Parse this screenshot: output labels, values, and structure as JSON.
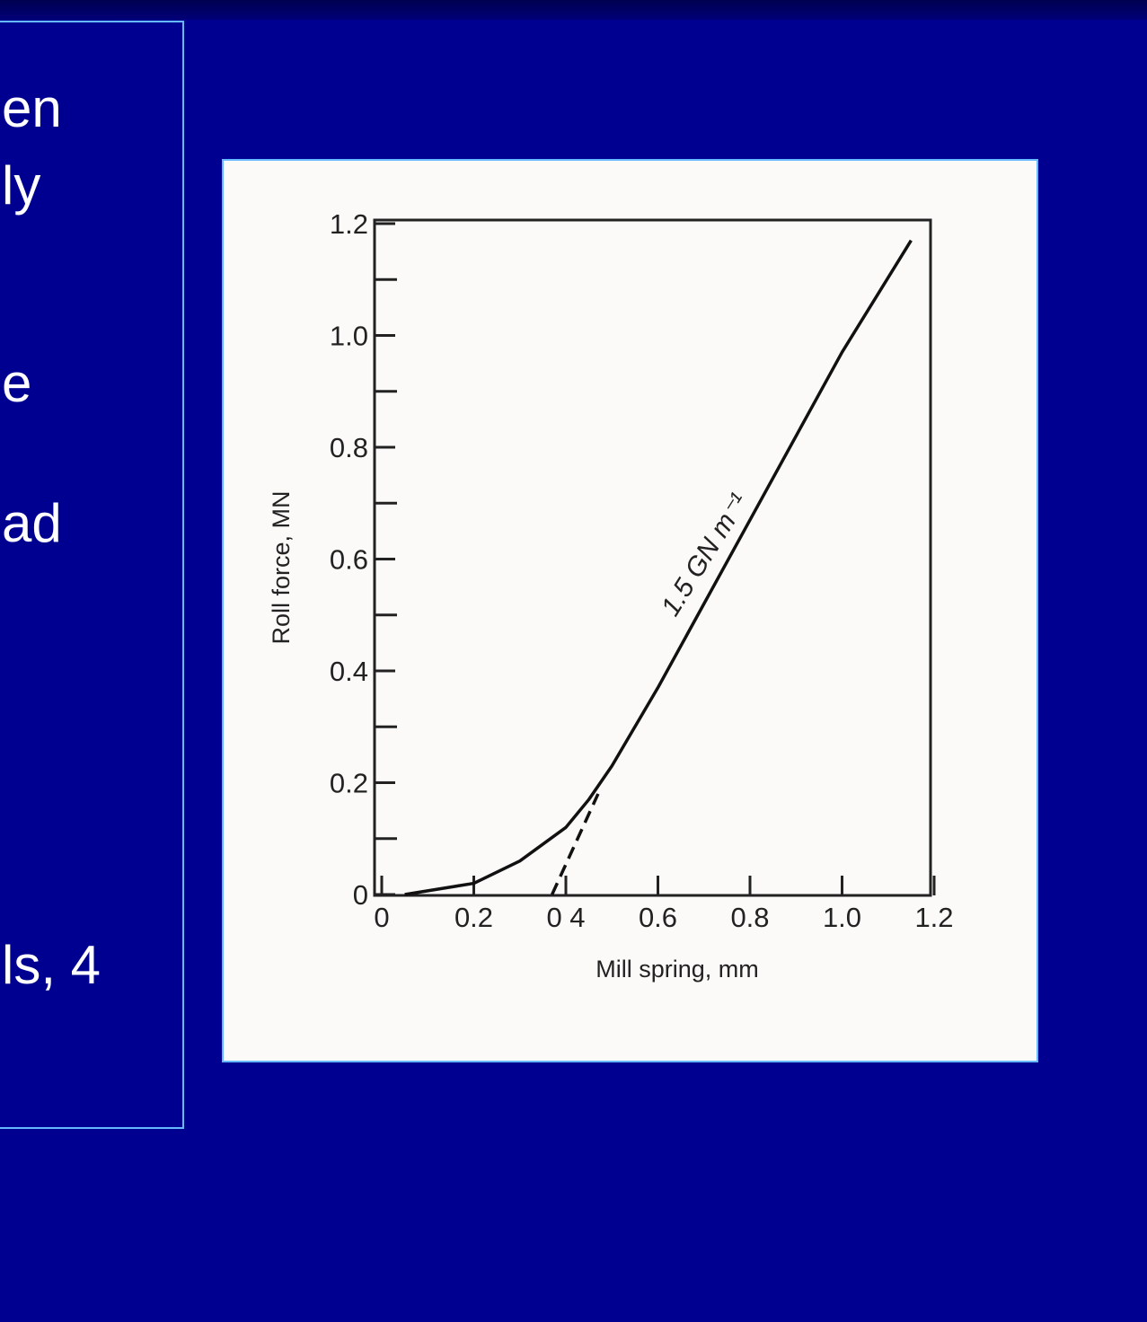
{
  "slide": {
    "text_fragments": [
      "en",
      "ly",
      "e",
      "ad",
      "ls, 4"
    ],
    "accent_color": "#66b8ff",
    "background_color": "#000090"
  },
  "chart_data": {
    "type": "line",
    "xlabel": "Mill spring, mm",
    "ylabel": "Roll force, MN",
    "xlim": [
      0,
      1.2
    ],
    "ylim": [
      0,
      1.2
    ],
    "x_ticks": [
      "0",
      "0.2",
      "0 4",
      "0.6",
      "0.8",
      "1.0",
      "1.2"
    ],
    "y_ticks": [
      "0",
      "0.2",
      "0.4",
      "0.6",
      "0.8",
      "1.0",
      "1.2"
    ],
    "grid": false,
    "annotation": "1.5 GN m⁻¹",
    "series": [
      {
        "style": "solid",
        "x": [
          0.05,
          0.2,
          0.3,
          0.4,
          0.45,
          0.5,
          0.55,
          0.6,
          0.8,
          1.0,
          1.15
        ],
        "y": [
          0,
          0.02,
          0.06,
          0.12,
          0.17,
          0.23,
          0.3,
          0.37,
          0.67,
          0.97,
          1.17
        ]
      },
      {
        "style": "dashed",
        "x": [
          0.37,
          0.47
        ],
        "y": [
          0,
          0.18
        ]
      }
    ]
  }
}
